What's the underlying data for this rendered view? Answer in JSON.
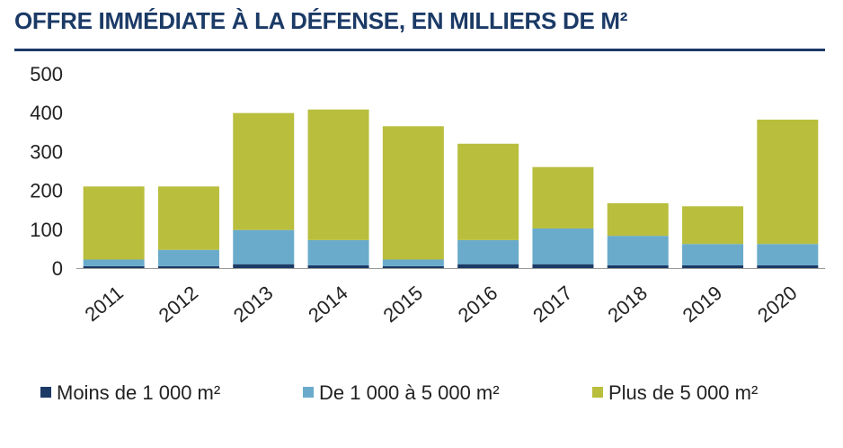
{
  "chart_data": {
    "type": "bar",
    "stacked": true,
    "title": "OFFRE IMMÉDIATE À LA DÉFENSE, EN MILLIERS DE M²",
    "xlabel": "",
    "ylabel": "",
    "categories": [
      "2011",
      "2012",
      "2013",
      "2014",
      "2015",
      "2016",
      "2017",
      "2018",
      "2019",
      "2020"
    ],
    "series": [
      {
        "name": "Moins de 1 000 m²",
        "color": "#1b3a66",
        "values": [
          5,
          5,
          10,
          7,
          5,
          10,
          10,
          7,
          7,
          7
        ]
      },
      {
        "name": "De 1 000 à 5 000 m²",
        "color": "#6aabcb",
        "values": [
          17,
          42,
          88,
          65,
          17,
          62,
          92,
          76,
          55,
          55
        ]
      },
      {
        "name": "Plus de 5 000 m²",
        "color": "#b9be3d",
        "values": [
          188,
          163,
          301,
          336,
          343,
          248,
          158,
          84,
          97,
          320
        ]
      }
    ],
    "ylim": [
      0,
      500
    ],
    "yticks": [
      0,
      100,
      200,
      300,
      400,
      500
    ],
    "grid": false,
    "legend_position": "bottom"
  }
}
